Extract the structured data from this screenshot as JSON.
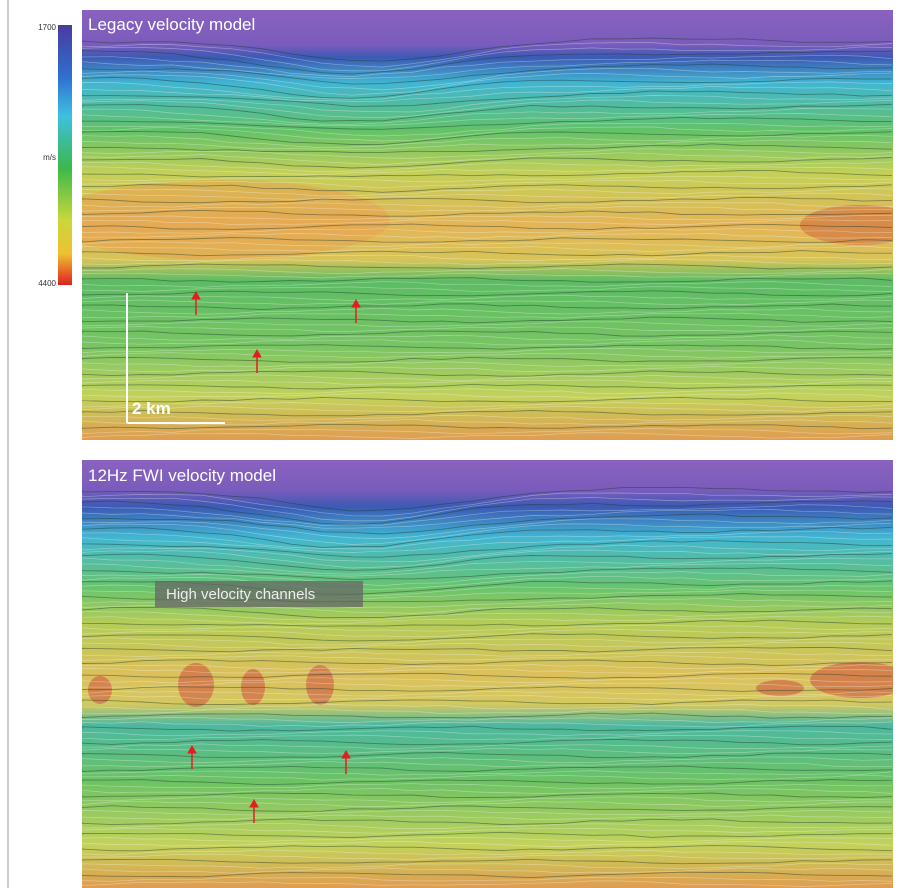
{
  "colorbar": {
    "max_label": "1700",
    "unit_label": "m/s",
    "min_label": "4400"
  },
  "panels": [
    {
      "title": "Legacy velocity model",
      "scale_label": "2 km"
    },
    {
      "title": "12Hz FWI velocity model",
      "annotation": "High velocity channels"
    }
  ]
}
